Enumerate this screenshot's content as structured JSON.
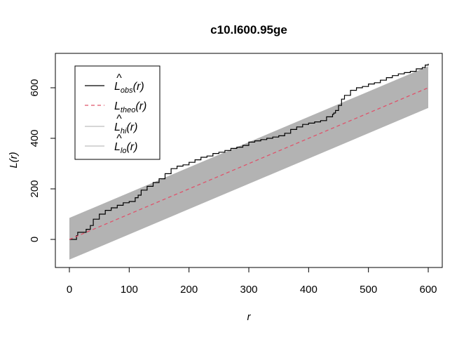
{
  "chart_data": {
    "type": "line",
    "title": "c10.l600.95ge",
    "xlabel": "r",
    "ylabel": "L(r)",
    "xlim": [
      0,
      600
    ],
    "ylim": [
      -100,
      700
    ],
    "xticks": [
      0,
      100,
      200,
      300,
      400,
      500,
      600
    ],
    "yticks": [
      0,
      200,
      400,
      600
    ],
    "grid": false,
    "legend_position": "top-left",
    "legend": [
      {
        "base": "L",
        "hat": true,
        "sub": "obs",
        "arg": "(r)",
        "color": "#000000",
        "dash": "solid"
      },
      {
        "base": "L",
        "hat": false,
        "sub": "theo",
        "arg": "(r)",
        "color": "#DF536B",
        "dash": "dashed"
      },
      {
        "base": "L",
        "hat": true,
        "sub": "hi",
        "arg": "(r)",
        "color": "#BEBEBE",
        "dash": "solid"
      },
      {
        "base": "L",
        "hat": true,
        "sub": "lo",
        "arg": "(r)",
        "color": "#BEBEBE",
        "dash": "solid"
      }
    ],
    "envelope": {
      "name": "hi-lo envelope",
      "color": "#B3B3B3",
      "x": [
        0,
        600
      ],
      "hi": [
        85,
        685
      ],
      "lo": [
        -80,
        520
      ]
    },
    "series": [
      {
        "name": "obs",
        "color": "#000000",
        "x": [
          0,
          10,
          12,
          14,
          24,
          28,
          30,
          35,
          40,
          50,
          60,
          70,
          80,
          90,
          100,
          110,
          115,
          120,
          130,
          140,
          150,
          160,
          170,
          180,
          190,
          200,
          210,
          220,
          230,
          240,
          250,
          260,
          270,
          280,
          290,
          300,
          310,
          320,
          330,
          340,
          350,
          360,
          370,
          380,
          390,
          400,
          410,
          420,
          430,
          440,
          442,
          445,
          450,
          455,
          460,
          470,
          480,
          490,
          500,
          510,
          520,
          530,
          540,
          550,
          560,
          570,
          580,
          590,
          595,
          600
        ],
        "values": [
          0,
          0,
          15,
          28,
          28,
          40,
          40,
          55,
          80,
          100,
          115,
          125,
          135,
          145,
          150,
          165,
          175,
          195,
          210,
          225,
          240,
          260,
          280,
          290,
          295,
          305,
          315,
          325,
          330,
          340,
          345,
          352,
          360,
          365,
          372,
          385,
          390,
          395,
          400,
          405,
          410,
          420,
          435,
          445,
          455,
          460,
          465,
          470,
          485,
          495,
          500,
          510,
          530,
          555,
          570,
          590,
          600,
          605,
          615,
          620,
          630,
          640,
          648,
          655,
          660,
          665,
          675,
          680,
          690,
          695
        ]
      },
      {
        "name": "theo",
        "color": "#DF536B",
        "x": [
          0,
          600
        ],
        "values": [
          0,
          600
        ]
      }
    ]
  }
}
